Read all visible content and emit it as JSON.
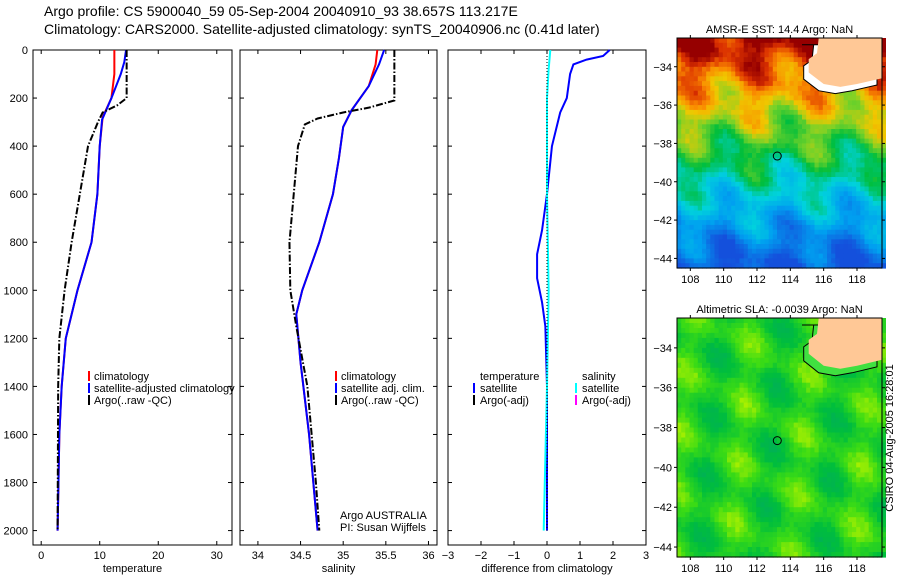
{
  "header": {
    "line1": "Argo profile: CS 5900040_59 05-Sep-2004 20040910_93 38.657S 113.217E",
    "line2": "Climatology: CARS2000. Satellite-adjusted climatology: synTS_20040906.nc (0.41d later)"
  },
  "side_label": "CSIRO 04-Aug-2005 16:28:01",
  "colors": {
    "climatology": "#ff0000",
    "satellite": "#0000ff",
    "argo": "#000000",
    "sal_satellite": "#00ffff",
    "sal_argo": "#ff00ff",
    "land": "#ffc896"
  },
  "chart_data": [
    {
      "type": "line",
      "xlabel": "temperature",
      "ylabel": "",
      "xlim": [
        -1.4,
        32.6
      ],
      "ylim": [
        2060,
        0
      ],
      "xticks": [
        0,
        10,
        20,
        30
      ],
      "yticks": [
        0,
        200,
        400,
        600,
        800,
        1000,
        1200,
        1400,
        1600,
        1800,
        2000
      ],
      "legend_position": "bottom-center",
      "legend": [
        "climatology",
        "satellite-adjusted climatology",
        "Argo(..raw -QC)"
      ],
      "series": [
        {
          "name": "climatology",
          "color": "#ff0000",
          "style": "solid",
          "points": [
            [
              12.5,
              0
            ],
            [
              12.5,
              100
            ],
            [
              12,
              200
            ],
            [
              10.5,
              280
            ],
            [
              10,
              400
            ],
            [
              9.6,
              600
            ],
            [
              8.6,
              800
            ],
            [
              6.2,
              1000
            ],
            [
              4.2,
              1200
            ],
            [
              3.5,
              1400
            ],
            [
              3.1,
              1600
            ],
            [
              2.8,
              2000
            ]
          ]
        },
        {
          "name": "satellite-adjusted climatology",
          "color": "#0000ff",
          "style": "solid",
          "points": [
            [
              14.5,
              0
            ],
            [
              14.2,
              50
            ],
            [
              13.6,
              100
            ],
            [
              12,
              200
            ],
            [
              10.4,
              290
            ],
            [
              10,
              400
            ],
            [
              9.6,
              600
            ],
            [
              8.6,
              800
            ],
            [
              6.2,
              1000
            ],
            [
              4.2,
              1200
            ],
            [
              3.5,
              1400
            ],
            [
              3.1,
              1600
            ],
            [
              2.8,
              2000
            ]
          ]
        },
        {
          "name": "Argo(..raw -QC)",
          "color": "#000000",
          "style": "dashdot",
          "points": [
            [
              14.6,
              0
            ],
            [
              14.6,
              200
            ],
            [
              13,
              230
            ],
            [
              10.5,
              260
            ],
            [
              9.7,
              300
            ],
            [
              8,
              400
            ],
            [
              6.6,
              600
            ],
            [
              5.2,
              800
            ],
            [
              4,
              1000
            ],
            [
              3.1,
              1200
            ],
            [
              2.9,
              1400
            ],
            [
              2.8,
              2000
            ]
          ]
        }
      ]
    },
    {
      "type": "line",
      "xlabel": "salinity",
      "ylabel": "",
      "xlim": [
        33.79,
        36.1
      ],
      "ylim": [
        2060,
        0
      ],
      "xticks": [
        34,
        34.5,
        35,
        35.5,
        36
      ],
      "yticks": [
        0,
        200,
        400,
        600,
        800,
        1000,
        1200,
        1400,
        1600,
        1800,
        2000
      ],
      "legend_position": "bottom-center",
      "legend": [
        "climatology",
        "satellite adj. clim.",
        "Argo(..raw -QC)"
      ],
      "annotations": [
        "Argo AUSTRALIA",
        "PI: Susan Wijffels"
      ],
      "series": [
        {
          "name": "climatology",
          "color": "#ff0000",
          "style": "solid",
          "points": [
            [
              35.4,
              0
            ],
            [
              35.38,
              60
            ],
            [
              35.3,
              150
            ],
            [
              35.1,
              250
            ],
            [
              35,
              320
            ],
            [
              34.95,
              450
            ],
            [
              34.88,
              600
            ],
            [
              34.72,
              800
            ],
            [
              34.52,
              1000
            ],
            [
              34.45,
              1100
            ],
            [
              34.5,
              1300
            ],
            [
              34.6,
              1600
            ],
            [
              34.7,
              2000
            ]
          ]
        },
        {
          "name": "satellite adj. clim.",
          "color": "#0000ff",
          "style": "solid",
          "points": [
            [
              35.48,
              0
            ],
            [
              35.42,
              60
            ],
            [
              35.3,
              150
            ],
            [
              35.1,
              250
            ],
            [
              35,
              320
            ],
            [
              34.95,
              450
            ],
            [
              34.88,
              600
            ],
            [
              34.72,
              800
            ],
            [
              34.52,
              1000
            ],
            [
              34.45,
              1100
            ],
            [
              34.5,
              1300
            ],
            [
              34.6,
              1600
            ],
            [
              34.7,
              2000
            ]
          ]
        },
        {
          "name": "Argo(..raw -QC)",
          "color": "#000000",
          "style": "dashdot",
          "points": [
            [
              35.6,
              0
            ],
            [
              35.6,
              210
            ],
            [
              35.3,
              240
            ],
            [
              35,
              260
            ],
            [
              34.7,
              285
            ],
            [
              34.55,
              310
            ],
            [
              34.47,
              400
            ],
            [
              34.42,
              600
            ],
            [
              34.37,
              800
            ],
            [
              34.38,
              1000
            ],
            [
              34.45,
              1150
            ],
            [
              34.58,
              1400
            ],
            [
              34.68,
              1800
            ],
            [
              34.72,
              2000
            ]
          ]
        }
      ]
    },
    {
      "type": "line",
      "xlabel": "difference from climatology",
      "ylabel": "",
      "xlim": [
        -3,
        3
      ],
      "ylim": [
        2060,
        0
      ],
      "xticks": [
        -3,
        -2,
        -1,
        0,
        1,
        2,
        3
      ],
      "yticks": [
        0,
        200,
        400,
        600,
        800,
        1000,
        1200,
        1400,
        1600,
        1800,
        2000
      ],
      "legend_position": "bottom-center",
      "legend": [
        {
          "group": "temperature",
          "items": [
            "satellite",
            "Argo(-adj)"
          ]
        },
        {
          "group": "salinity",
          "items": [
            "satellite",
            "Argo(-adj)"
          ]
        }
      ],
      "series": [
        {
          "name": "temperature satellite",
          "color": "#0000ff",
          "style": "solid",
          "points": [
            [
              1.9,
              0
            ],
            [
              1.7,
              25
            ],
            [
              1.2,
              40
            ],
            [
              0.8,
              60
            ],
            [
              0.7,
              100
            ],
            [
              0.6,
              200
            ],
            [
              0.4,
              260
            ],
            [
              0.15,
              400
            ],
            [
              0,
              600
            ],
            [
              -0.15,
              750
            ],
            [
              -0.3,
              850
            ],
            [
              -0.3,
              950
            ],
            [
              -0.15,
              1050
            ],
            [
              -0.05,
              1150
            ],
            [
              0,
              1400
            ],
            [
              0,
              2000
            ]
          ]
        },
        {
          "name": "salinity satellite",
          "color": "#00ffff",
          "style": "solid",
          "points": [
            [
              0.1,
              0
            ],
            [
              0.05,
              80
            ],
            [
              0,
              200
            ],
            [
              0,
              600
            ],
            [
              0.05,
              1000
            ],
            [
              0,
              1400
            ],
            [
              -0.05,
              1700
            ],
            [
              -0.1,
              2000
            ]
          ]
        },
        {
          "name": "zero",
          "color": "#000000",
          "style": "dotted",
          "points": [
            [
              0,
              0
            ],
            [
              0,
              2000
            ]
          ]
        }
      ]
    },
    {
      "type": "heatmap",
      "title": "AMSR-E SST: 14.4 Argo: NaN",
      "xlim": [
        107.2,
        119.5
      ],
      "ylim": [
        -44.5,
        -32.5
      ],
      "xticks": [
        108,
        110,
        112,
        114,
        116,
        118
      ],
      "yticks": [
        -34,
        -36,
        -38,
        -40,
        -42,
        -44
      ],
      "marker": [
        113.217,
        -38.657
      ]
    },
    {
      "type": "heatmap",
      "title": "Altimetric SLA: -0.0039 Argo: NaN",
      "xlim": [
        107.2,
        119.5
      ],
      "ylim": [
        -44.5,
        -32.5
      ],
      "xticks": [
        108,
        110,
        112,
        114,
        116,
        118
      ],
      "yticks": [
        -34,
        -36,
        -38,
        -40,
        -42,
        -44
      ],
      "marker": [
        113.217,
        -38.657
      ]
    }
  ]
}
